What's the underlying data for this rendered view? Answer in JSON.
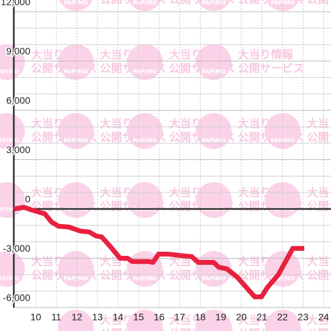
{
  "watermark": {
    "line1": "大当り情報",
    "line2": "公開サービス",
    "brand": "PAPIMO"
  },
  "chart_data": {
    "type": "line",
    "x": [
      8.93,
      9.43,
      9.77,
      10.44,
      10.77,
      11.1,
      11.6,
      12.18,
      12.6,
      12.94,
      13.2,
      13.6,
      14.1,
      14.45,
      14.7,
      15.5,
      15.7,
      15.97,
      16.47,
      17.15,
      17.58,
      17.9,
      18.65,
      18.9,
      19.3,
      19.8,
      20.65,
      20.98,
      21.25,
      21.8,
      22.5,
      23.06
    ],
    "series": [
      {
        "color": "#e8213f",
        "values": [
          0,
          100,
          -50,
          -300,
          -800,
          -1050,
          -1100,
          -1350,
          -1400,
          -1650,
          -1700,
          -2250,
          -3000,
          -3000,
          -3200,
          -3200,
          -3250,
          -2750,
          -2750,
          -2850,
          -2900,
          -3250,
          -3250,
          -3550,
          -3650,
          -4150,
          -5350,
          -5350,
          -4800,
          -4000,
          -2400,
          -2400
        ]
      }
    ],
    "xlim": [
      8.93,
      24.36
    ],
    "xticks": [
      10,
      11,
      12,
      13,
      14,
      15,
      16,
      17,
      18,
      19,
      20,
      21,
      22,
      23,
      24
    ],
    "ylim": [
      -6000,
      12000
    ],
    "yticks": [
      {
        "value": -6000,
        "label": "-6,000"
      },
      {
        "value": -3000,
        "label": "-3,000"
      },
      0,
      {
        "value": 3000,
        "label": "3,000"
      },
      {
        "value": 6000,
        "label": "6,000"
      },
      {
        "value": 9000,
        "label": "9,000"
      },
      {
        "value": 12000,
        "label": "12,000"
      }
    ],
    "yminor": [
      -5000,
      -4000,
      -2000,
      -1000,
      1000,
      2000,
      4000,
      5000,
      7000,
      8000,
      10000,
      11000
    ],
    "grid": true
  }
}
